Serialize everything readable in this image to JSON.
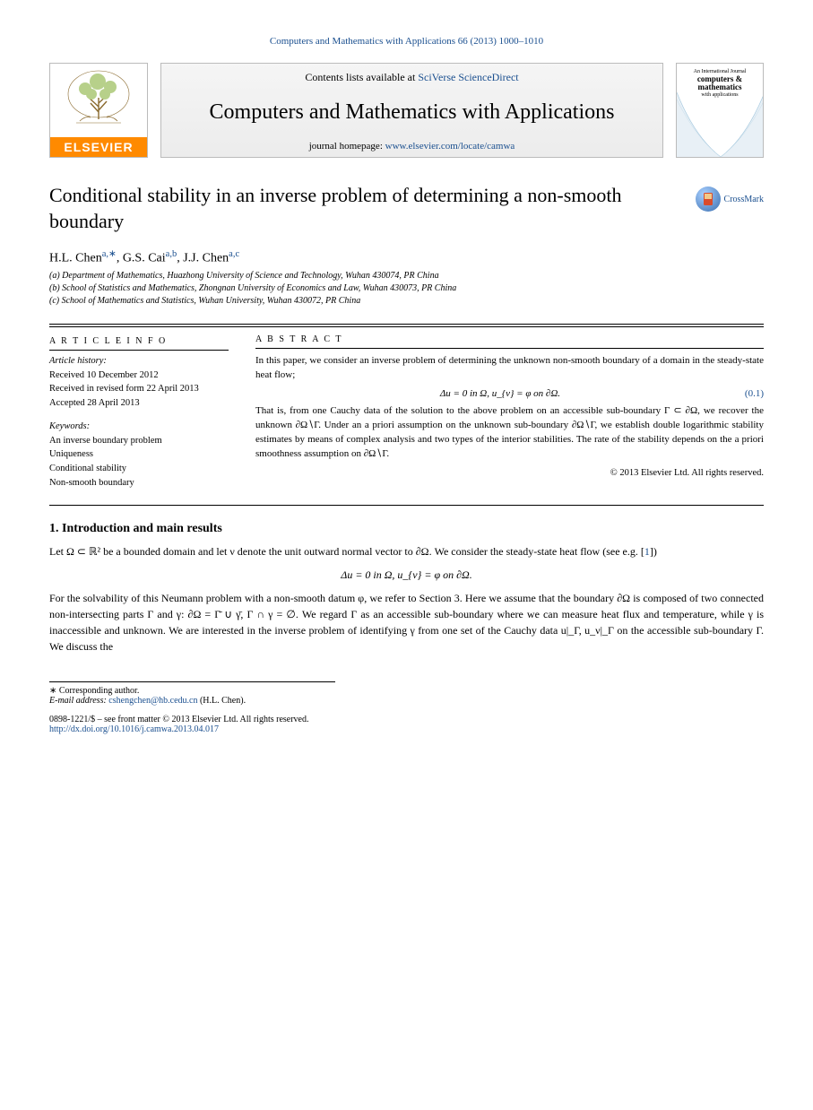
{
  "citation": "Computers and Mathematics with Applications 66 (2013) 1000–1010",
  "banner": {
    "contents_prefix": "Contents lists available at ",
    "contents_link": "SciVerse ScienceDirect",
    "journal_title": "Computers and Mathematics with Applications",
    "homepage_prefix": "journal homepage: ",
    "homepage_link": "www.elsevier.com/locate/camwa",
    "elsevier_word": "ELSEVIER",
    "cover_small1": "An International Journal",
    "cover_small2": "computers & mathematics",
    "cover_small3": "with applications"
  },
  "title": "Conditional stability in an inverse problem of determining a non-smooth boundary",
  "crossmark": "CrossMark",
  "authors_html": "H.L. Chen<sup><a>a,∗</a></sup>, G.S. Cai<sup><a>a,b</a></sup>, J.J. Chen<sup><a>a,c</a></sup>",
  "affiliations": {
    "a": "(a) Department of Mathematics, Huazhong University of Science and Technology, Wuhan 430074, PR China",
    "b": "(b) School of Statistics and Mathematics, Zhongnan University of Economics and Law, Wuhan 430073, PR China",
    "c": "(c) School of Mathematics and Statistics, Wuhan University, Wuhan 430072, PR China"
  },
  "article_info": {
    "heading": "A R T I C L E   I N F O",
    "hist_label": "Article history:",
    "received": "Received 10 December 2012",
    "revised": "Received in revised form 22 April 2013",
    "accepted": "Accepted 28 April 2013",
    "kw_label": "Keywords:",
    "kw1": "An inverse boundary problem",
    "kw2": "Uniqueness",
    "kw3": "Conditional stability",
    "kw4": "Non-smooth boundary"
  },
  "abstract": {
    "heading": "A B S T R A C T",
    "text1": "In this paper, we consider an inverse problem of determining the unknown non-smooth boundary of a domain in the steady-state heat flow;",
    "eq1": "Δu = 0   in Ω,    u_{ν} = φ   on ∂Ω.",
    "eq1_num": "(0.1)",
    "text2": "That is, from one Cauchy data of the solution to the above problem on an accessible sub-boundary Γ ⊂ ∂Ω, we recover the unknown ∂Ω∖Γ. Under an a priori assumption on the unknown sub-boundary ∂Ω∖Γ, we establish double logarithmic stability estimates by means of complex analysis and two types of the interior stabilities. The rate of the stability depends on the a priori smoothness assumption on ∂Ω∖Γ.",
    "copyright": "© 2013 Elsevier Ltd. All rights reserved."
  },
  "section1": {
    "heading": "1. Introduction and main results",
    "para": "Let Ω ⊂ ℝ² be a bounded domain and let ν denote the unit outward normal vector to ∂Ω. We consider the steady-state heat flow (see e.g. [",
    "ref1": "1",
    "para_tail": "])",
    "eq": "Δu = 0   in Ω,    u_{ν} = φ   on ∂Ω.",
    "para2": "For the solvability of this Neumann problem with a non-smooth datum φ, we refer to Section 3. Here we assume that the boundary ∂Ω is composed of two connected non-intersecting parts Γ and γ: ∂Ω = Γ̄ ∪ γ̄, Γ ∩ γ = ∅. We regard Γ as an accessible sub-boundary where we can measure heat flux and temperature, while γ is inaccessible and unknown. We are interested in the inverse problem of identifying γ from one set of the Cauchy data u|_Γ, u_ν|_Γ on the accessible sub-boundary Γ. We discuss the"
  },
  "footnotes": {
    "corr": "∗ Corresponding author.",
    "email_label": "E-mail address: ",
    "email": "cshengchen@hb.cedu.cn",
    "email_tail": " (H.L. Chen)."
  },
  "doi": {
    "code": "0898-1221/$ – see front matter © 2013 Elsevier Ltd. All rights reserved.",
    "link": "http://dx.doi.org/10.1016/j.camwa.2013.04.017"
  }
}
